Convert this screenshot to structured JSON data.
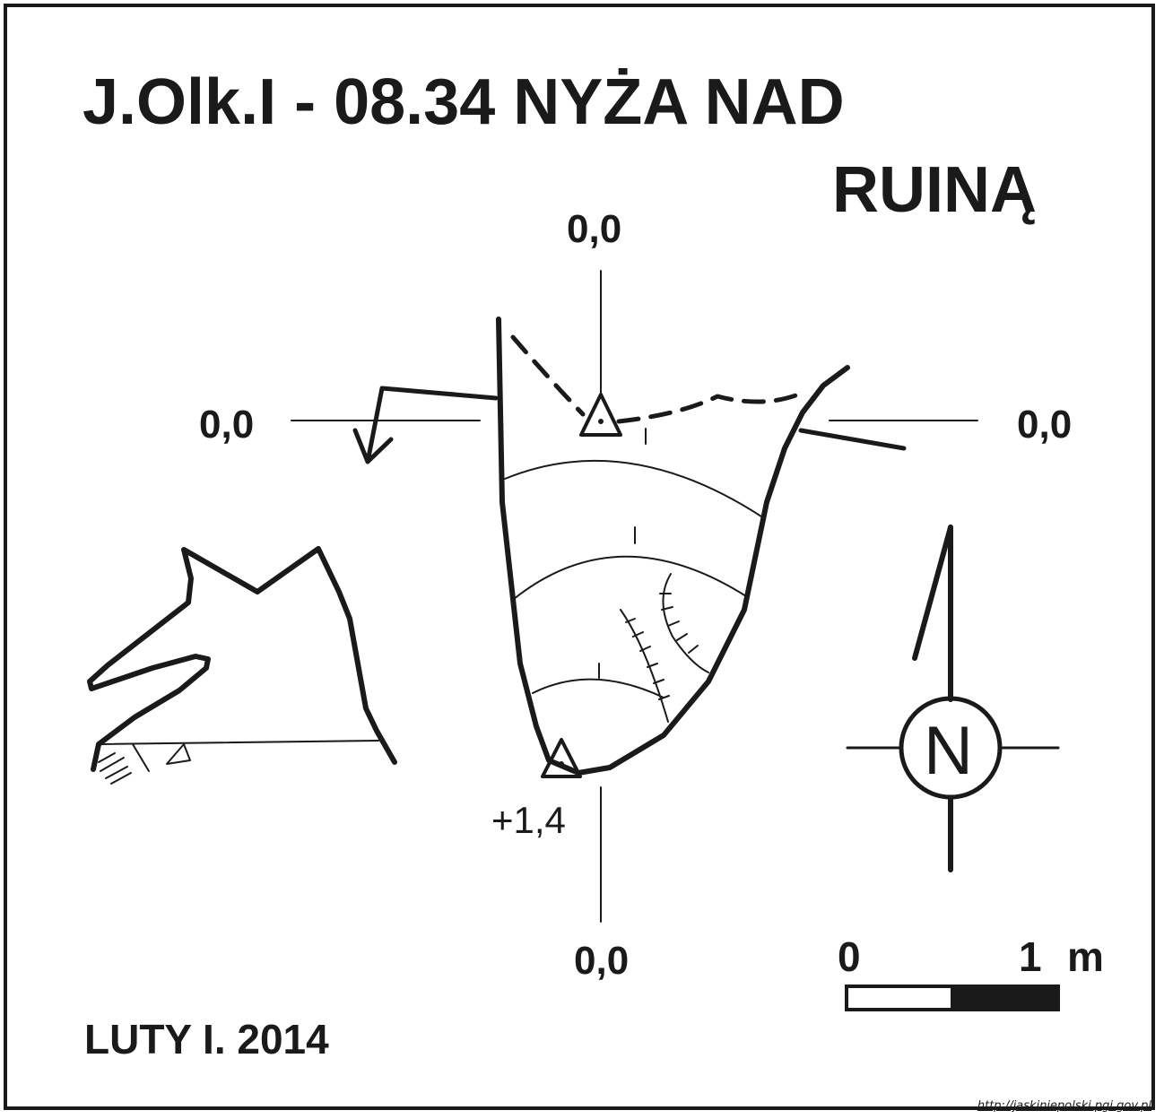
{
  "title": {
    "line1": "J.Olk.I - 08.34  NYŻA NAD",
    "line2": "RUINĄ"
  },
  "axis_labels": {
    "top": "0,0",
    "left": "0,0",
    "right": "0,0",
    "bottom": "0,0"
  },
  "elevation_label": "+1,4",
  "compass": {
    "letter": "N"
  },
  "scale_bar": {
    "start_label": "0",
    "end_label": "1",
    "unit": "m",
    "length_m": 1
  },
  "date": "LUTY I. 2014",
  "source_url": "http://jaskiniepolski.pgi.gov.pl",
  "colors": {
    "ink": "#1a1a1a",
    "paper": "#ffffff"
  }
}
